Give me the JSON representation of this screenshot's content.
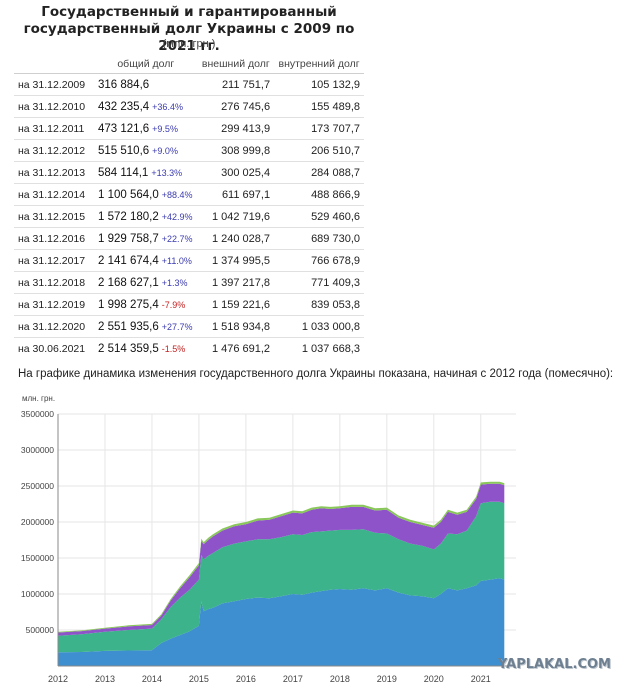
{
  "header": {
    "title_line1": "Государственный и гарантированный",
    "title_line2": "государственный долг Украины с 2009 по 2021 гг.",
    "subtitle": "(млн. грн.)"
  },
  "table": {
    "columns": [
      "",
      "общий долг",
      "внешний долг",
      "внутренний долг"
    ],
    "rows": [
      {
        "date": "на 31.12.2009",
        "total": "316 884,6",
        "change": "",
        "external": "211 751,7",
        "internal": "105 132,9"
      },
      {
        "date": "на 31.12.2010",
        "total": "432 235,4",
        "change": "+36.4%",
        "external": "276 745,6",
        "internal": "155 489,8"
      },
      {
        "date": "на 31.12.2011",
        "total": "473 121,6",
        "change": "+9.5%",
        "external": "299 413,9",
        "internal": "173 707,7"
      },
      {
        "date": "на 31.12.2012",
        "total": "515 510,6",
        "change": "+9.0%",
        "external": "308 999,8",
        "internal": "206 510,7"
      },
      {
        "date": "на 31.12.2013",
        "total": "584 114,1",
        "change": "+13.3%",
        "external": "300 025,4",
        "internal": "284 088,7"
      },
      {
        "date": "на 31.12.2014",
        "total": "1 100 564,0",
        "change": "+88.4%",
        "external": "611 697,1",
        "internal": "488 866,9"
      },
      {
        "date": "на 31.12.2015",
        "total": "1 572 180,2",
        "change": "+42.9%",
        "external": "1 042 719,6",
        "internal": "529 460,6"
      },
      {
        "date": "на 31.12.2016",
        "total": "1 929 758,7",
        "change": "+22.7%",
        "external": "1 240 028,7",
        "internal": "689 730,0"
      },
      {
        "date": "на 31.12.2017",
        "total": "2 141 674,4",
        "change": "+11.0%",
        "external": "1 374 995,5",
        "internal": "766 678,9"
      },
      {
        "date": "на 31.12.2018",
        "total": "2 168 627,1",
        "change": "+1.3%",
        "external": "1 397 217,8",
        "internal": "771 409,3"
      },
      {
        "date": "на 31.12.2019",
        "total": "1 998 275,4",
        "change": "-7.9%",
        "external": "1 159 221,6",
        "internal": "839 053,8"
      },
      {
        "date": "на 31.12.2020",
        "total": "2 551 935,6",
        "change": "+27.7%",
        "external": "1 518 934,8",
        "internal": "1 033 000,8"
      },
      {
        "date": "на 30.06.2021",
        "total": "2 514 359,5",
        "change": "-1.5%",
        "external": "1 476 691,2",
        "internal": "1 037 668,3"
      }
    ]
  },
  "caption": "На графике динамика изменения государственного долга Украины показана, начиная с 2012 года (помесячно):",
  "watermark": "YAPLAKAL.COM",
  "colors": {
    "layer1": "#3e8fcf",
    "layer2": "#3cb38a",
    "layer3": "#8e53c9",
    "layer4": "#8ac75a",
    "grid": "#e6e6e6",
    "axis": "#888888"
  },
  "chart_data": {
    "type": "area",
    "stacked": true,
    "ylabel": "млн. грн.",
    "ylim": [
      0,
      3500000
    ],
    "yticks": [
      500000,
      1000000,
      1500000,
      2000000,
      2500000,
      3000000,
      3500000
    ],
    "xlim": [
      2012.0,
      2021.75
    ],
    "xticks": [
      "2012",
      "2013",
      "2014",
      "2015",
      "2016",
      "2017",
      "2018",
      "2019",
      "2020",
      "2021"
    ],
    "grid": true,
    "x": [
      2012.0,
      2012.5,
      2013.0,
      2013.5,
      2014.0,
      2014.2,
      2014.4,
      2014.6,
      2014.8,
      2015.0,
      2015.05,
      2015.1,
      2015.2,
      2015.3,
      2015.5,
      2015.75,
      2016.0,
      2016.25,
      2016.5,
      2016.75,
      2017.0,
      2017.2,
      2017.4,
      2017.6,
      2017.8,
      2018.0,
      2018.25,
      2018.5,
      2018.75,
      2019.0,
      2019.25,
      2019.5,
      2019.75,
      2020.0,
      2020.15,
      2020.3,
      2020.5,
      2020.7,
      2020.9,
      2021.0,
      2021.2,
      2021.4,
      2021.5
    ],
    "series": [
      {
        "values": [
          190000,
          195000,
          210000,
          215000,
          220000,
          320000,
          380000,
          430000,
          480000,
          560000,
          900000,
          760000,
          790000,
          810000,
          870000,
          900000,
          930000,
          950000,
          940000,
          970000,
          1000000,
          990000,
          1020000,
          1040000,
          1060000,
          1070000,
          1060000,
          1080000,
          1050000,
          1080000,
          1020000,
          980000,
          970000,
          940000,
          1000000,
          1080000,
          1050000,
          1080000,
          1120000,
          1180000,
          1200000,
          1220000,
          1200000
        ]
      },
      {
        "values": [
          230000,
          245000,
          265000,
          285000,
          300000,
          330000,
          440000,
          520000,
          580000,
          640000,
          640000,
          720000,
          740000,
          760000,
          780000,
          800000,
          800000,
          810000,
          820000,
          820000,
          830000,
          830000,
          840000,
          830000,
          820000,
          820000,
          830000,
          820000,
          800000,
          760000,
          740000,
          720000,
          700000,
          680000,
          700000,
          760000,
          780000,
          800000,
          960000,
          1080000,
          1080000,
          1060000,
          1060000
        ]
      },
      {
        "values": [
          45000,
          45000,
          45000,
          50000,
          50000,
          50000,
          90000,
          130000,
          170000,
          200000,
          200000,
          210000,
          220000,
          230000,
          230000,
          240000,
          240000,
          260000,
          270000,
          290000,
          300000,
          300000,
          310000,
          320000,
          300000,
          300000,
          320000,
          310000,
          310000,
          330000,
          300000,
          300000,
          290000,
          300000,
          300000,
          300000,
          270000,
          260000,
          240000,
          260000,
          250000,
          250000,
          250000
        ]
      },
      {
        "values": [
          10000,
          10000,
          10000,
          15000,
          15000,
          20000,
          20000,
          25000,
          30000,
          30000,
          30000,
          30000,
          30000,
          30000,
          30000,
          30000,
          30000,
          30000,
          30000,
          30000,
          30000,
          30000,
          30000,
          30000,
          30000,
          30000,
          30000,
          30000,
          30000,
          30000,
          30000,
          30000,
          30000,
          30000,
          30000,
          30000,
          30000,
          30000,
          30000,
          30000,
          30000,
          30000,
          30000
        ]
      }
    ]
  }
}
